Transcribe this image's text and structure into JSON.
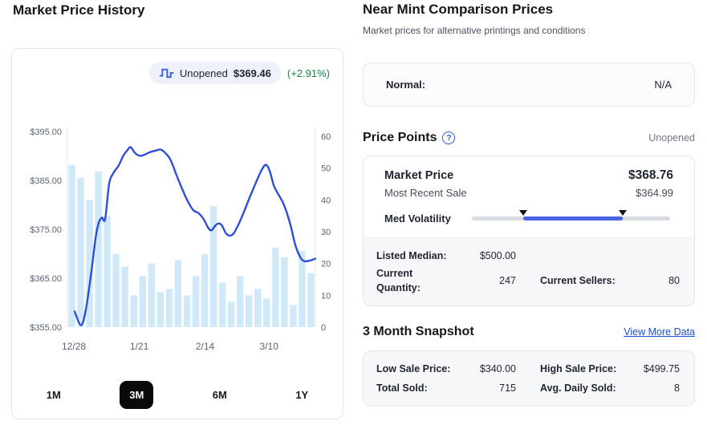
{
  "left": {
    "title": "Market Price History",
    "legend": {
      "series": "Unopened",
      "price": "$369.46",
      "change": "(+2.91%)"
    },
    "range_buttons": [
      {
        "label": "1M",
        "active": false
      },
      {
        "label": "3M",
        "active": true
      },
      {
        "label": "6M",
        "active": false
      },
      {
        "label": "1Y",
        "active": false
      }
    ]
  },
  "chart_data": {
    "type": "line+bar",
    "title": "Market Price History",
    "legend_position": "top-right",
    "grid": false,
    "price_axis": {
      "side": "left",
      "min": 355,
      "max": 395,
      "ticks": [
        "$395.00",
        "$385.00",
        "$375.00",
        "$365.00",
        "$355.00"
      ]
    },
    "volume_axis": {
      "side": "right",
      "min": 0,
      "max": 60,
      "ticks": [
        60,
        50,
        40,
        30,
        20,
        10,
        0
      ]
    },
    "x_labels": [
      {
        "label": "12/28",
        "f": 0.026
      },
      {
        "label": "1/21",
        "f": 0.29
      },
      {
        "label": "2/14",
        "f": 0.555
      },
      {
        "label": "3/10",
        "f": 0.813
      }
    ],
    "price_line": {
      "name": "Unopened",
      "color": "#2c4fd7",
      "current_value": 369.46,
      "change_pct": 2.91,
      "points": [
        [
          0.029,
          358.2
        ],
        [
          0.055,
          355.4
        ],
        [
          0.074,
          358.5
        ],
        [
          0.097,
          366.5
        ],
        [
          0.113,
          373.0
        ],
        [
          0.126,
          376.3
        ],
        [
          0.139,
          377.4
        ],
        [
          0.152,
          377.1
        ],
        [
          0.168,
          384.2
        ],
        [
          0.184,
          386.4
        ],
        [
          0.206,
          388.0
        ],
        [
          0.226,
          390.1
        ],
        [
          0.242,
          391.2
        ],
        [
          0.255,
          391.8
        ],
        [
          0.271,
          390.7
        ],
        [
          0.287,
          390.1
        ],
        [
          0.303,
          390.1
        ],
        [
          0.329,
          390.7
        ],
        [
          0.355,
          391.1
        ],
        [
          0.377,
          391.3
        ],
        [
          0.397,
          390.5
        ],
        [
          0.416,
          389.2
        ],
        [
          0.442,
          385.8
        ],
        [
          0.461,
          383.5
        ],
        [
          0.481,
          381.2
        ],
        [
          0.506,
          379.0
        ],
        [
          0.529,
          378.3
        ],
        [
          0.548,
          377.2
        ],
        [
          0.568,
          375.3
        ],
        [
          0.581,
          374.8
        ],
        [
          0.597,
          375.8
        ],
        [
          0.61,
          376.2
        ],
        [
          0.623,
          375.8
        ],
        [
          0.639,
          374.2
        ],
        [
          0.655,
          373.7
        ],
        [
          0.671,
          374.2
        ],
        [
          0.69,
          376.0
        ],
        [
          0.713,
          378.7
        ],
        [
          0.735,
          381.5
        ],
        [
          0.758,
          384.3
        ],
        [
          0.781,
          386.9
        ],
        [
          0.8,
          388.2
        ],
        [
          0.816,
          386.9
        ],
        [
          0.832,
          384.0
        ],
        [
          0.848,
          382.4
        ],
        [
          0.868,
          380.6
        ],
        [
          0.884,
          378.5
        ],
        [
          0.9,
          375.8
        ],
        [
          0.919,
          371.8
        ],
        [
          0.939,
          369.3
        ],
        [
          0.955,
          368.5
        ],
        [
          0.977,
          368.6
        ],
        [
          1.0,
          369.0
        ]
      ]
    },
    "volume_bars": {
      "color": "#cfe9f9",
      "values": [
        51,
        47,
        40,
        49,
        35,
        23,
        19,
        10,
        16,
        20,
        11,
        12,
        21,
        10,
        16,
        23,
        38,
        14,
        8,
        16,
        10,
        12,
        9,
        25,
        22,
        7,
        24,
        17
      ]
    }
  },
  "right": {
    "comparison": {
      "title": "Near Mint Comparison Prices",
      "subtitle": "Market prices for alternative printings and conditions",
      "rows": [
        {
          "label": "Normal:",
          "value": "N/A"
        }
      ]
    },
    "price_points": {
      "title": "Price Points",
      "help_icon": "?",
      "condition": "Unopened",
      "market_price_label": "Market Price",
      "market_price": "$368.76",
      "recent_sale_label": "Most Recent Sale",
      "recent_sale": "$364.99",
      "volatility_label": "Med Volatility",
      "stats": {
        "listed_median_label": "Listed Median:",
        "listed_median": "$500.00",
        "current_quantity_label": "Current Quantity:",
        "current_quantity": "247",
        "current_sellers_label": "Current Sellers:",
        "current_sellers": "80"
      }
    },
    "snapshot": {
      "title": "3 Month Snapshot",
      "link": "View More Data",
      "stats": [
        {
          "label": "Low Sale Price:",
          "value": "$340.00"
        },
        {
          "label": "High Sale Price:",
          "value": "$499.75"
        },
        {
          "label": "Total Sold:",
          "value": "715"
        },
        {
          "label": "Avg. Daily Sold:",
          "value": "8"
        }
      ]
    }
  },
  "colors": {
    "accent_blue": "#2c4fd7",
    "volume_bar": "#cfe9f9",
    "positive_green": "#17843c",
    "active_button_bg": "#0a0a0c",
    "link_blue": "#1d4ed8",
    "volatility_fill": "#4a63e0",
    "section_bg": "#f6f7f9"
  }
}
